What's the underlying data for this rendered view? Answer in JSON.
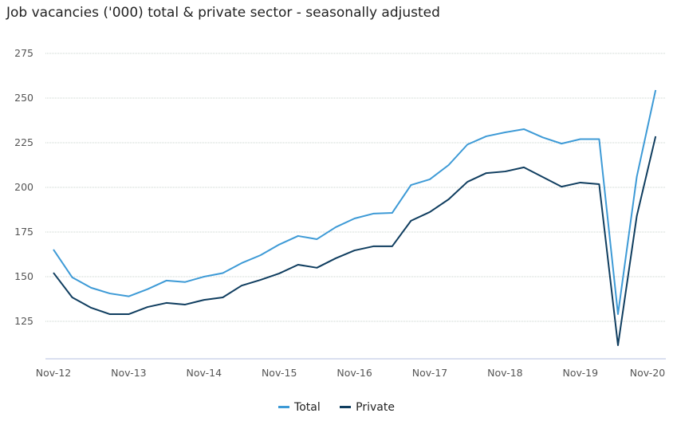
{
  "chart_data": {
    "type": "line",
    "title": "Job vacancies ('000) total & private sector - seasonally adjusted",
    "xlabel": "",
    "ylabel": "",
    "ylim": [
      104,
      280
    ],
    "yticks": [
      125,
      150,
      175,
      200,
      225,
      250,
      275
    ],
    "xtick_labels": [
      "Nov-12",
      "Nov-13",
      "Nov-14",
      "Nov-15",
      "Nov-16",
      "Nov-17",
      "Nov-18",
      "Nov-19",
      "Nov-20"
    ],
    "x_quarters_from_nov12": [
      0,
      1,
      2,
      3,
      4,
      5,
      6,
      7,
      8,
      9,
      10,
      11,
      12,
      13,
      14,
      15,
      16,
      17,
      18,
      19,
      20,
      21,
      22,
      23,
      24,
      25,
      26,
      27,
      28,
      29,
      30,
      31,
      32
    ],
    "grid": true,
    "legend_position": "bottom-center",
    "series": [
      {
        "name": "Total",
        "color": "#3d9ad6",
        "values": [
          165.2,
          149.6,
          143.8,
          140.6,
          139.0,
          143.0,
          147.8,
          147.0,
          150.0,
          152.0,
          157.6,
          162.0,
          168.0,
          172.8,
          171.0,
          177.7,
          182.6,
          185.3,
          185.7,
          201.3,
          204.5,
          212.5,
          224.0,
          228.6,
          230.8,
          232.6,
          228.0,
          224.5,
          227.0,
          227.0,
          129.0,
          206.0,
          254.5
        ]
      },
      {
        "name": "Private",
        "color": "#0f3d5f",
        "values": [
          152.2,
          138.4,
          132.6,
          129.0,
          129.0,
          133.0,
          135.3,
          134.4,
          137.0,
          138.4,
          145.0,
          148.2,
          151.8,
          156.7,
          155.0,
          160.3,
          164.7,
          167.0,
          167.0,
          181.3,
          186.2,
          193.3,
          203.1,
          208.0,
          208.9,
          211.2,
          205.8,
          200.4,
          202.7,
          201.8,
          111.6,
          184.0,
          228.6
        ]
      }
    ]
  }
}
